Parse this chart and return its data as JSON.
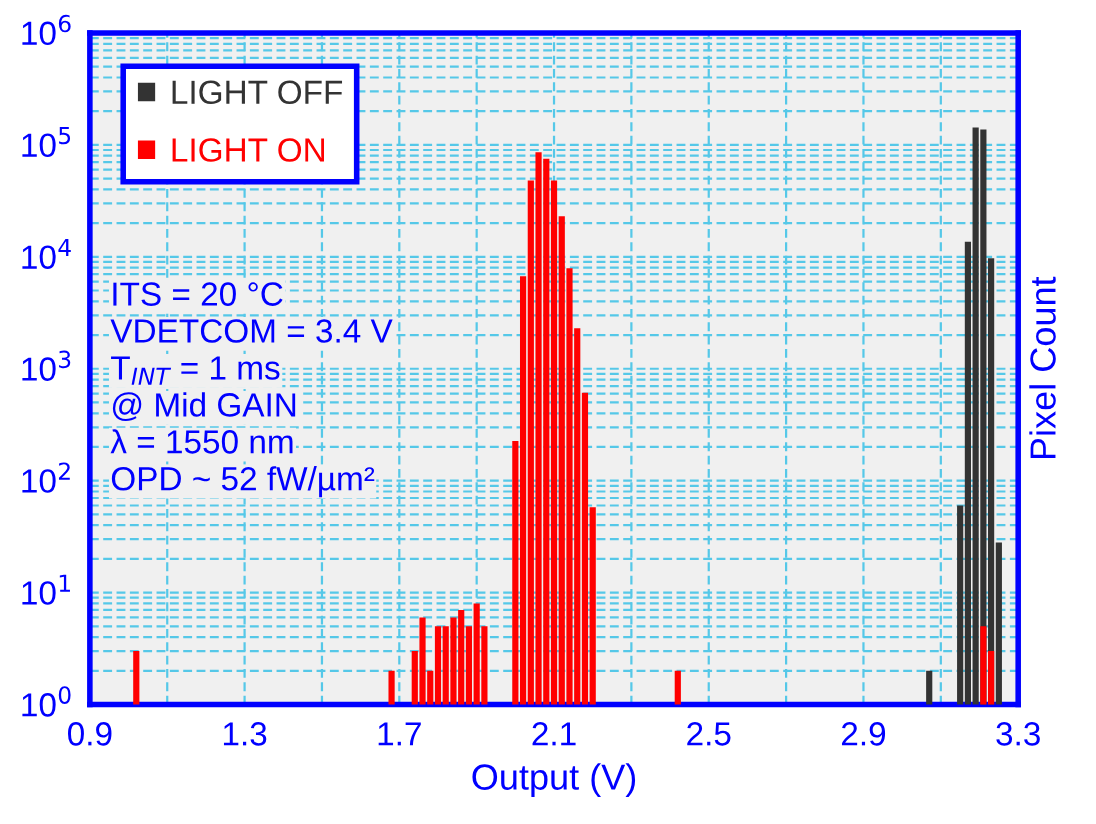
{
  "chart_data": {
    "type": "bar",
    "xlabel": "Output (V)",
    "ylabel": "Pixel Count",
    "xlim": [
      0.9,
      3.3
    ],
    "xticks": [
      0.9,
      {
        "value": 1.1,
        "label": null
      },
      1.3,
      {
        "value": 1.5,
        "label": null
      },
      1.7,
      {
        "value": 1.9,
        "label": null
      },
      2.1,
      {
        "value": 2.3,
        "label": null
      },
      2.5,
      {
        "value": 2.7,
        "label": null
      },
      2.9,
      {
        "value": 3.1,
        "label": null
      },
      3.3
    ],
    "ylim": [
      1,
      1000000
    ],
    "log": "y",
    "yticks": [
      {
        "value": 1,
        "label": "10$^{0}$"
      },
      {
        "value": 2,
        "label": null
      },
      {
        "value": 3,
        "label": null
      },
      {
        "value": 4,
        "label": null
      },
      {
        "value": 5,
        "label": null
      },
      {
        "value": 6,
        "label": null
      },
      {
        "value": 7,
        "label": null
      },
      {
        "value": 8,
        "label": null
      },
      {
        "value": 9,
        "label": null
      },
      {
        "value": 10,
        "label": "10$^{1}$"
      },
      {
        "value": 20,
        "label": null
      },
      {
        "value": 30,
        "label": null
      },
      {
        "value": 40,
        "label": null
      },
      {
        "value": 50,
        "label": null
      },
      {
        "value": 60,
        "label": null
      },
      {
        "value": 70,
        "label": null
      },
      {
        "value": 80,
        "label": null
      },
      {
        "value": 90,
        "label": null
      },
      {
        "value": 100,
        "label": "10$^{2}$"
      },
      {
        "value": 200,
        "label": null
      },
      {
        "value": 300,
        "label": null
      },
      {
        "value": 400,
        "label": null
      },
      {
        "value": 500,
        "label": null
      },
      {
        "value": 600,
        "label": null
      },
      {
        "value": 700,
        "label": null
      },
      {
        "value": 800,
        "label": null
      },
      {
        "value": 900,
        "label": null
      },
      {
        "value": 1000,
        "label": "10$^{3}$"
      },
      {
        "value": 2000,
        "label": null
      },
      {
        "value": 3000,
        "label": null
      },
      {
        "value": 4000,
        "label": null
      },
      {
        "value": 5000,
        "label": null
      },
      {
        "value": 6000,
        "label": null
      },
      {
        "value": 7000,
        "label": null
      },
      {
        "value": 8000,
        "label": null
      },
      {
        "value": 9000,
        "label": null
      },
      {
        "value": 10000,
        "label": "10$^{4}$"
      },
      {
        "value": 20000,
        "label": null
      },
      {
        "value": 30000,
        "label": null
      },
      {
        "value": 40000,
        "label": null
      },
      {
        "value": 50000,
        "label": null
      },
      {
        "value": 60000,
        "label": null
      },
      {
        "value": 70000,
        "label": null
      },
      {
        "value": 80000,
        "label": null
      },
      {
        "value": 90000,
        "label": null
      },
      {
        "value": 100000,
        "label": "10$^{5}$"
      },
      {
        "value": 200000,
        "label": null
      },
      {
        "value": 300000,
        "label": null
      },
      {
        "value": 400000,
        "label": null
      },
      {
        "value": 500000,
        "label": null
      },
      {
        "value": 600000,
        "label": null
      },
      {
        "value": 700000,
        "label": null
      },
      {
        "value": 800000,
        "label": null
      },
      {
        "value": 900000,
        "label": null
      },
      {
        "value": 1000000,
        "label": "10$^{6}$"
      }
    ],
    "grid": true,
    "legend": "top left",
    "series": [
      {
        "name": "LIGHT OFF",
        "color": "#333333",
        "x": [
          3.07,
          3.15,
          3.17,
          3.19,
          3.21,
          3.23,
          3.25
        ],
        "values": [
          2,
          60,
          13600,
          143000,
          137000,
          9700,
          28
        ]
      },
      {
        "name": "LIGHT ON",
        "color": "#ff0000",
        "x": [
          1.02,
          1.68,
          1.74,
          1.76,
          1.78,
          1.8,
          1.82,
          1.84,
          1.86,
          1.88,
          1.9,
          1.92,
          2.0,
          2.02,
          2.04,
          2.06,
          2.08,
          2.1,
          2.12,
          2.14,
          2.16,
          2.18,
          2.2,
          2.42,
          3.21,
          3.23
        ],
        "values": [
          3,
          2,
          3,
          6,
          2,
          5,
          5,
          6,
          7,
          5,
          8,
          5,
          226,
          6700,
          48000,
          86000,
          75000,
          48000,
          23000,
          7900,
          2300,
          610,
          58,
          2,
          5,
          3
        ]
      }
    ],
    "annotations": [
      "ITS = 20 °C",
      "VDETCOM = 3.4 V",
      "T$_{INT}$ = 1 ms",
      "@ Mid GAIN",
      "λ = 1550 nm",
      "OPD ~ 52 fW/µm²"
    ]
  }
}
